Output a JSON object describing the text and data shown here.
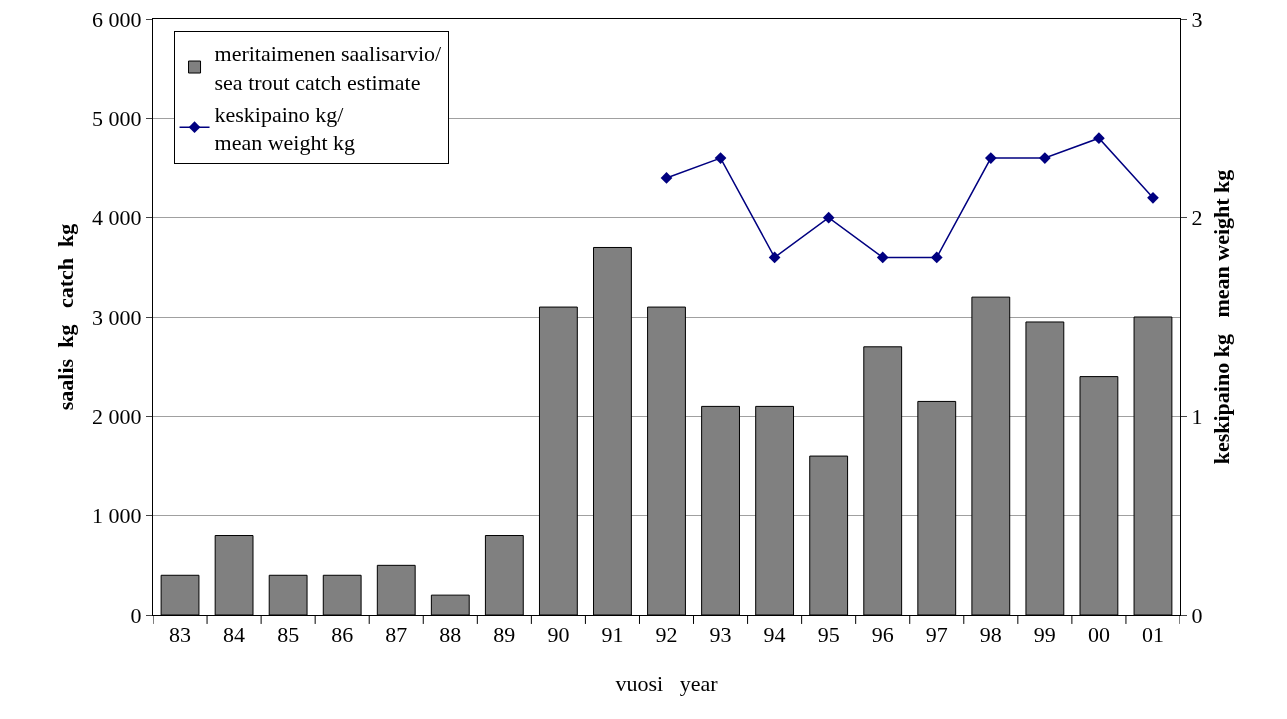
{
  "chart_data": {
    "type": "bar",
    "xlabel": "vuosi   year",
    "ylabel": "saalis  kg   catch  kg",
    "y2label": "keskipaino kg   mean weight kg",
    "categories": [
      "83",
      "84",
      "85",
      "86",
      "87",
      "88",
      "89",
      "90",
      "91",
      "92",
      "93",
      "94",
      "95",
      "96",
      "97",
      "98",
      "99",
      "00",
      "01"
    ],
    "series": [
      {
        "name": "meritaimenen saalisarvio/\nsea trout catch estimate",
        "color": "#808080",
        "values": [
          400,
          800,
          400,
          400,
          500,
          200,
          800,
          3100,
          3700,
          3100,
          2100,
          2100,
          1600,
          2700,
          2150,
          3200,
          2950,
          2400,
          3000
        ]
      },
      {
        "type": "line",
        "axis": "y2",
        "name": "keskipaino kg/\nmean weight kg",
        "color": "#000080",
        "marker": "diamond",
        "line_style": "solid",
        "values": [
          null,
          null,
          null,
          null,
          null,
          null,
          null,
          null,
          null,
          2.2,
          2.3,
          1.8,
          2.0,
          1.8,
          1.8,
          2.3,
          2.3,
          2.4,
          2.1
        ]
      }
    ],
    "ylim": [
      0,
      6000
    ],
    "yticks": [
      0,
      {
        "value": 1000,
        "label": "1 000"
      },
      {
        "value": 2000,
        "label": "2 000"
      },
      {
        "value": 3000,
        "label": "3 000"
      },
      {
        "value": 4000,
        "label": "4 000"
      },
      {
        "value": 5000,
        "label": "5 000"
      },
      {
        "value": 6000,
        "label": "6 000"
      }
    ],
    "y2lim": [
      0,
      3
    ],
    "y2ticks": [
      0,
      1,
      2,
      3
    ],
    "grid": "y",
    "legend": "top left"
  }
}
